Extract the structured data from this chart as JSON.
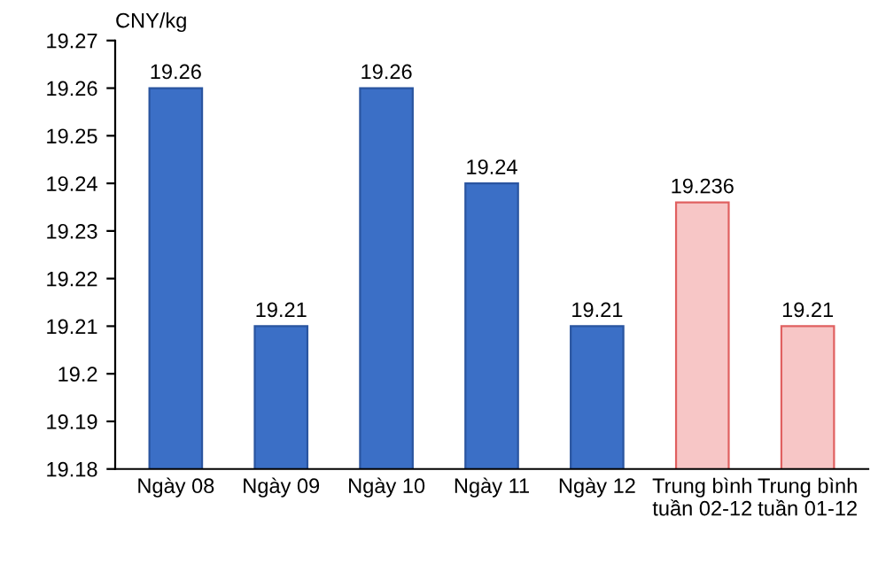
{
  "chart_data": {
    "type": "bar",
    "ylabel": "CNY/kg",
    "categories": [
      "Ngày 08",
      "Ngày 09",
      "Ngày 10",
      "Ngày 11",
      "Ngày 12",
      "Trung bình\ntuần 02-12",
      "Trung bình\ntuần 01-12"
    ],
    "values": [
      19.26,
      19.21,
      19.26,
      19.24,
      19.21,
      19.236,
      19.21
    ],
    "colors": [
      "#3b6fc6",
      "#3b6fc6",
      "#3b6fc6",
      "#3b6fc6",
      "#3b6fc6",
      "#f7c6c6",
      "#f7c6c6"
    ],
    "ylim": [
      19.18,
      19.27
    ],
    "yticks": [
      19.18,
      19.19,
      19.2,
      19.21,
      19.22,
      19.23,
      19.24,
      19.25,
      19.26,
      19.27
    ],
    "data_labels": true,
    "grid": false,
    "legend": false
  }
}
